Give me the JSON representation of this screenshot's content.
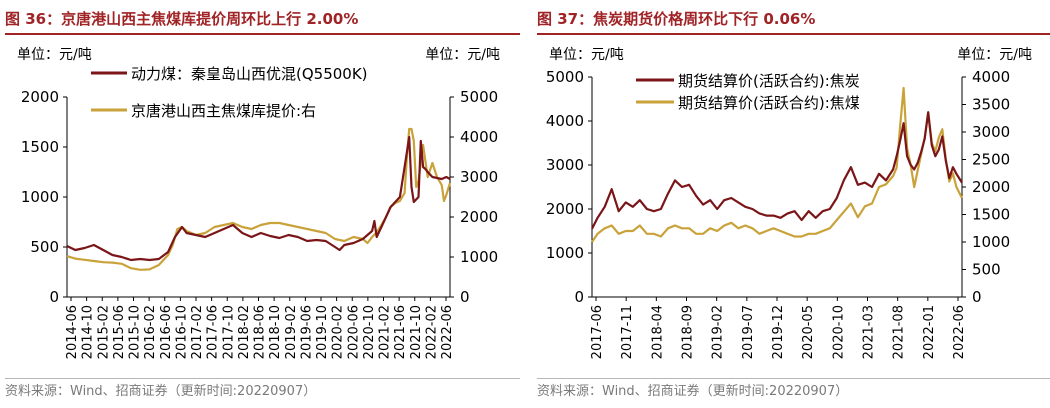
{
  "panels": [
    {
      "title": "图 36：京唐港山西主焦煤库提价周环比上行 2.00%",
      "unit_left": "单位：元/吨",
      "unit_right": "单位：元/吨",
      "source": "资料来源：Wind、招商证券（更新时间:20220907）"
    },
    {
      "title": "图 37：焦炭期货价格周环比下行 0.06%",
      "unit_left": "单位：元/吨",
      "unit_right": "单位：元/吨",
      "source": "资料来源：Wind、招商证券（更新时间:20220907）"
    }
  ],
  "chart_data": [
    {
      "type": "line",
      "title": "京唐港山西主焦煤库提价周环比上行 2.00%",
      "xlabel": "",
      "ylabel_left": "元/吨",
      "ylabel_right": "元/吨",
      "ylim_left": [
        0,
        2000
      ],
      "ylim_right": [
        0,
        5000
      ],
      "yticks_left": [
        "0",
        "500",
        "1000",
        "1500",
        "2000"
      ],
      "yticks_right": [
        "0",
        "1000",
        "2000",
        "3000",
        "4000",
        "5000"
      ],
      "x_range": [
        2014.42,
        2022.68
      ],
      "x_tick_labels": [
        "2014-06",
        "2014-10",
        "2015-02",
        "2015-06",
        "2015-10",
        "2016-02",
        "2016-06",
        "2016-10",
        "2017-02",
        "2017-06",
        "2017-10",
        "2018-02",
        "2018-06",
        "2018-10",
        "2019-02",
        "2019-06",
        "2019-10",
        "2020-02",
        "2020-06",
        "2020-10",
        "2021-02",
        "2021-06",
        "2021-10",
        "2022-02",
        "2022-06"
      ],
      "series": [
        {
          "name": "动力煤：秦皇岛山西优混(Q5500K)",
          "axis": "left",
          "color": "#7a1518",
          "x": [
            2014.42,
            2014.6,
            2014.8,
            2015.0,
            2015.2,
            2015.4,
            2015.6,
            2015.8,
            2016.0,
            2016.2,
            2016.4,
            2016.6,
            2016.75,
            2016.9,
            2017.0,
            2017.2,
            2017.4,
            2017.6,
            2017.8,
            2018.0,
            2018.2,
            2018.4,
            2018.6,
            2018.8,
            2019.0,
            2019.2,
            2019.4,
            2019.6,
            2019.8,
            2020.0,
            2020.2,
            2020.3,
            2020.4,
            2020.6,
            2020.8,
            2021.0,
            2021.05,
            2021.1,
            2021.2,
            2021.4,
            2021.6,
            2021.7,
            2021.8,
            2021.85,
            2021.9,
            2022.0,
            2022.05,
            2022.1,
            2022.15,
            2022.2,
            2022.3,
            2022.4,
            2022.5,
            2022.6,
            2022.68
          ],
          "values": [
            510,
            470,
            490,
            520,
            470,
            420,
            400,
            370,
            380,
            370,
            380,
            450,
            600,
            700,
            640,
            620,
            600,
            640,
            680,
            720,
            640,
            600,
            640,
            610,
            590,
            620,
            600,
            560,
            570,
            560,
            500,
            470,
            520,
            540,
            580,
            660,
            760,
            600,
            700,
            900,
            1000,
            1300,
            1600,
            1100,
            950,
            1000,
            1560,
            1300,
            1280,
            1250,
            1200,
            1190,
            1180,
            1200,
            1180
          ]
        },
        {
          "name": "京唐港山西主焦煤库提价:右",
          "axis": "right",
          "color": "#c9a23a",
          "x": [
            2014.42,
            2014.6,
            2014.8,
            2015.0,
            2015.2,
            2015.4,
            2015.6,
            2015.8,
            2016.0,
            2016.2,
            2016.4,
            2016.6,
            2016.7,
            2016.8,
            2016.9,
            2017.0,
            2017.2,
            2017.4,
            2017.6,
            2017.8,
            2018.0,
            2018.2,
            2018.4,
            2018.6,
            2018.8,
            2019.0,
            2019.2,
            2019.4,
            2019.6,
            2019.8,
            2020.0,
            2020.2,
            2020.4,
            2020.6,
            2020.8,
            2020.9,
            2021.0,
            2021.1,
            2021.2,
            2021.3,
            2021.4,
            2021.5,
            2021.6,
            2021.7,
            2021.75,
            2021.8,
            2021.85,
            2021.9,
            2021.95,
            2022.0,
            2022.1,
            2022.2,
            2022.3,
            2022.4,
            2022.5,
            2022.55,
            2022.6,
            2022.68
          ],
          "values": [
            1020,
            960,
            930,
            900,
            870,
            860,
            830,
            720,
            680,
            690,
            800,
            1050,
            1300,
            1700,
            1750,
            1650,
            1550,
            1600,
            1750,
            1800,
            1850,
            1750,
            1700,
            1800,
            1850,
            1850,
            1800,
            1750,
            1700,
            1650,
            1600,
            1450,
            1400,
            1500,
            1450,
            1350,
            1500,
            1620,
            1800,
            2000,
            2250,
            2350,
            2400,
            2600,
            3500,
            4200,
            4200,
            3900,
            2750,
            2900,
            3800,
            3000,
            3350,
            3000,
            2800,
            2400,
            2550,
            2850
          ]
        }
      ]
    },
    {
      "type": "line",
      "title": "焦炭期货价格周环比下行 0.06%",
      "xlabel": "",
      "ylabel_left": "元/吨",
      "ylabel_right": "元/吨",
      "ylim_left": [
        0,
        5000
      ],
      "ylim_right": [
        0,
        4000
      ],
      "yticks_left": [
        "0",
        "1000",
        "2000",
        "3000",
        "4000",
        "5000"
      ],
      "yticks_right": [
        "0",
        "500",
        "1000",
        "1500",
        "2000",
        "2500",
        "3000",
        "3500",
        "4000"
      ],
      "x_range": [
        2017.42,
        2022.68
      ],
      "x_tick_labels": [
        "2017-06",
        "2017-11",
        "2018-04",
        "2018-09",
        "2019-02",
        "2019-07",
        "2019-12",
        "2020-05",
        "2020-10",
        "2021-03",
        "2021-08",
        "2022-01",
        "2022-06"
      ],
      "series": [
        {
          "name": "期货结算价(活跃合约):焦炭",
          "axis": "left",
          "color": "#7a1518",
          "x": [
            2017.42,
            2017.5,
            2017.6,
            2017.7,
            2017.8,
            2017.9,
            2018.0,
            2018.1,
            2018.2,
            2018.3,
            2018.4,
            2018.5,
            2018.6,
            2018.7,
            2018.8,
            2018.9,
            2019.0,
            2019.1,
            2019.2,
            2019.3,
            2019.4,
            2019.5,
            2019.6,
            2019.7,
            2019.8,
            2019.9,
            2020.0,
            2020.1,
            2020.2,
            2020.3,
            2020.4,
            2020.5,
            2020.6,
            2020.7,
            2020.8,
            2020.9,
            2021.0,
            2021.1,
            2021.2,
            2021.3,
            2021.4,
            2021.5,
            2021.6,
            2021.7,
            2021.75,
            2021.8,
            2021.85,
            2021.9,
            2021.95,
            2022.0,
            2022.05,
            2022.1,
            2022.15,
            2022.2,
            2022.25,
            2022.3,
            2022.35,
            2022.4,
            2022.45,
            2022.5,
            2022.55,
            2022.6,
            2022.68
          ],
          "values": [
            1550,
            1800,
            2050,
            2450,
            1950,
            2150,
            2050,
            2200,
            2000,
            1950,
            2000,
            2350,
            2650,
            2500,
            2550,
            2300,
            2100,
            2200,
            2000,
            2200,
            2250,
            2150,
            2050,
            2000,
            1900,
            1850,
            1850,
            1800,
            1900,
            1950,
            1750,
            1950,
            1800,
            1950,
            2000,
            2250,
            2650,
            2950,
            2550,
            2600,
            2500,
            2800,
            2650,
            2900,
            3200,
            3550,
            3950,
            3200,
            3000,
            2900,
            3050,
            3300,
            3600,
            4200,
            3450,
            3200,
            3350,
            3650,
            3100,
            2700,
            2950,
            2800,
            2600
          ]
        },
        {
          "name": "期货结算价(活跃合约):焦煤",
          "axis": "right",
          "color": "#c9a23a",
          "x": [
            2017.42,
            2017.5,
            2017.6,
            2017.7,
            2017.8,
            2017.9,
            2018.0,
            2018.1,
            2018.2,
            2018.3,
            2018.4,
            2018.5,
            2018.6,
            2018.7,
            2018.8,
            2018.9,
            2019.0,
            2019.1,
            2019.2,
            2019.3,
            2019.4,
            2019.5,
            2019.6,
            2019.7,
            2019.8,
            2019.9,
            2020.0,
            2020.1,
            2020.2,
            2020.3,
            2020.4,
            2020.5,
            2020.6,
            2020.7,
            2020.8,
            2020.9,
            2021.0,
            2021.1,
            2021.2,
            2021.3,
            2021.4,
            2021.5,
            2021.6,
            2021.7,
            2021.75,
            2021.8,
            2021.85,
            2021.9,
            2021.95,
            2022.0,
            2022.05,
            2022.1,
            2022.15,
            2022.2,
            2022.25,
            2022.3,
            2022.35,
            2022.4,
            2022.45,
            2022.5,
            2022.55,
            2022.6,
            2022.68
          ],
          "values": [
            1000,
            1150,
            1250,
            1300,
            1150,
            1200,
            1200,
            1300,
            1150,
            1150,
            1100,
            1250,
            1300,
            1250,
            1250,
            1150,
            1150,
            1250,
            1200,
            1300,
            1350,
            1250,
            1300,
            1250,
            1150,
            1200,
            1250,
            1200,
            1150,
            1100,
            1100,
            1150,
            1150,
            1200,
            1250,
            1400,
            1550,
            1700,
            1450,
            1650,
            1700,
            2000,
            2050,
            2200,
            2350,
            3100,
            3800,
            2700,
            2400,
            2000,
            2300,
            2600,
            2900,
            3350,
            2800,
            2650,
            2900,
            3050,
            2500,
            2100,
            2250,
            2000,
            1800
          ]
        }
      ]
    }
  ]
}
